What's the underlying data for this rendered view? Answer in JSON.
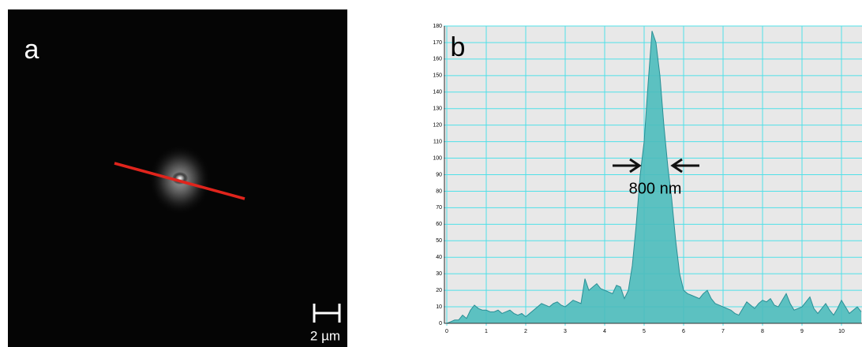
{
  "image_panel": {
    "label": "a",
    "scale_bar": "2 µm"
  },
  "chart_data": {
    "type": "area",
    "panel_label": "b",
    "annotation": "800 nm",
    "x": [
      0,
      0.1,
      0.2,
      0.3,
      0.4,
      0.5,
      0.6,
      0.7,
      0.8,
      0.9,
      1,
      1.1,
      1.2,
      1.3,
      1.4,
      1.5,
      1.6,
      1.7,
      1.8,
      1.9,
      2,
      2.1,
      2.2,
      2.3,
      2.4,
      2.5,
      2.6,
      2.7,
      2.8,
      2.9,
      3,
      3.1,
      3.2,
      3.3,
      3.4,
      3.5,
      3.6,
      3.7,
      3.8,
      3.9,
      4,
      4.1,
      4.2,
      4.3,
      4.4,
      4.5,
      4.6,
      4.7,
      4.8,
      4.9,
      5,
      5.1,
      5.2,
      5.3,
      5.4,
      5.5,
      5.6,
      5.7,
      5.8,
      5.9,
      6,
      6.1,
      6.2,
      6.3,
      6.4,
      6.5,
      6.6,
      6.7,
      6.8,
      6.9,
      7,
      7.1,
      7.2,
      7.3,
      7.4,
      7.5,
      7.6,
      7.7,
      7.8,
      7.9,
      8,
      8.1,
      8.2,
      8.3,
      8.4,
      8.5,
      8.6,
      8.7,
      8.8,
      8.9,
      9,
      9.1,
      9.2,
      9.3,
      9.4,
      9.5,
      9.6,
      9.7,
      9.8,
      9.9,
      10,
      10.1,
      10.2,
      10.3,
      10.4,
      10.5
    ],
    "values": [
      0,
      1,
      2,
      2,
      5,
      3,
      8,
      11,
      9,
      8,
      8,
      7,
      7,
      8,
      6,
      7,
      8,
      6,
      5,
      6,
      4,
      6,
      8,
      10,
      12,
      11,
      10,
      12,
      13,
      11,
      10,
      12,
      14,
      13,
      12,
      27,
      20,
      22,
      24,
      21,
      20,
      19,
      18,
      23,
      22,
      15,
      20,
      35,
      60,
      90,
      110,
      145,
      177,
      170,
      150,
      120,
      95,
      75,
      50,
      30,
      20,
      18,
      17,
      16,
      15,
      18,
      20,
      15,
      12,
      11,
      10,
      9,
      8,
      6,
      5,
      9,
      13,
      11,
      9,
      12,
      14,
      13,
      15,
      11,
      10,
      14,
      18,
      12,
      8,
      9,
      10,
      13,
      16,
      9,
      6,
      9,
      12,
      8,
      5,
      9,
      14,
      10,
      6,
      8,
      10,
      7
    ],
    "color": "#4dbcbc",
    "xlim": [
      0,
      10.5
    ],
    "ylim": [
      0,
      180
    ],
    "xticks": [
      0,
      1,
      2,
      3,
      4,
      5,
      6,
      7,
      8,
      9,
      10
    ],
    "yticks": [
      0,
      10,
      20,
      30,
      40,
      50,
      60,
      70,
      80,
      90,
      100,
      110,
      120,
      130,
      140,
      150,
      160,
      170,
      180
    ],
    "grid": true
  }
}
